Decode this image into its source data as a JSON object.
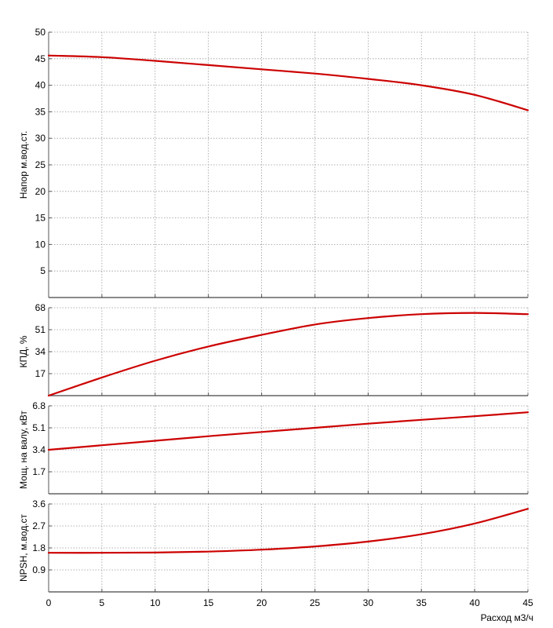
{
  "colors": {
    "curve": "#cc0000",
    "grid": "#999999",
    "axis": "#555555",
    "frame": "#444444"
  },
  "chart_data": [
    {
      "type": "line",
      "ylabel": "Напор м.вод.ст.",
      "ylim": [
        0,
        50
      ],
      "yticks": [
        5,
        10,
        15,
        20,
        25,
        30,
        35,
        40,
        45,
        50
      ],
      "grid": true,
      "series": [
        {
          "x": [
            0,
            5,
            10,
            15,
            20,
            25,
            30,
            35,
            40,
            45
          ],
          "y": [
            45.6,
            45.3,
            44.6,
            43.8,
            43.0,
            42.2,
            41.2,
            40.0,
            38.2,
            35.3
          ]
        }
      ]
    },
    {
      "type": "line",
      "ylabel": "КПД, %",
      "ylim": [
        0,
        68
      ],
      "yticks": [
        17,
        34,
        51,
        68
      ],
      "grid": true,
      "series": [
        {
          "x": [
            0,
            5,
            10,
            15,
            20,
            25,
            30,
            35,
            40,
            45
          ],
          "y": [
            0,
            14,
            27,
            38,
            47,
            55,
            60,
            63,
            64,
            63
          ]
        }
      ]
    },
    {
      "type": "line",
      "ylabel": "Мощ. на валу, кВт",
      "ylim": [
        0,
        6.8
      ],
      "yticks": [
        1.7,
        3.4,
        5.1,
        6.8
      ],
      "grid": true,
      "series": [
        {
          "x": [
            0,
            5,
            10,
            15,
            20,
            25,
            30,
            35,
            40,
            45
          ],
          "y": [
            3.4,
            3.75,
            4.1,
            4.45,
            4.78,
            5.1,
            5.42,
            5.72,
            6.0,
            6.3
          ]
        }
      ]
    },
    {
      "type": "line",
      "ylabel": "NPSH, м.вод.ст",
      "xlabel": "Расход м3/ч",
      "ylim": [
        0,
        3.6
      ],
      "yticks": [
        0.9,
        1.8,
        2.7,
        3.6
      ],
      "xlim": [
        0,
        45
      ],
      "xticks": [
        0,
        5,
        10,
        15,
        20,
        25,
        30,
        35,
        40,
        45
      ],
      "grid": true,
      "series": [
        {
          "x": [
            0,
            5,
            10,
            15,
            20,
            25,
            30,
            35,
            40,
            45
          ],
          "y": [
            1.6,
            1.6,
            1.61,
            1.65,
            1.73,
            1.86,
            2.06,
            2.36,
            2.8,
            3.4
          ]
        }
      ]
    }
  ]
}
